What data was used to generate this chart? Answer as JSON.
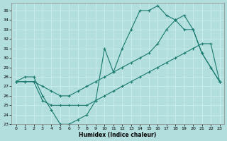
{
  "xlabel": "Humidex (Indice chaleur)",
  "xlim": [
    -0.5,
    23.5
  ],
  "ylim": [
    23,
    35.8
  ],
  "yticks": [
    23,
    24,
    25,
    26,
    27,
    28,
    29,
    30,
    31,
    32,
    33,
    34,
    35
  ],
  "xticks": [
    0,
    1,
    2,
    3,
    4,
    5,
    6,
    7,
    8,
    9,
    10,
    11,
    12,
    13,
    14,
    15,
    16,
    17,
    18,
    19,
    20,
    21,
    22,
    23
  ],
  "bg_color": "#b2dede",
  "grid_color": "#c8ecec",
  "line_color": "#1a7a6e",
  "line1_x": [
    0,
    1,
    2,
    3,
    4,
    5,
    6,
    7,
    8,
    9,
    10,
    11,
    12,
    13,
    14,
    15,
    16,
    17,
    18,
    19,
    20,
    21,
    22,
    23
  ],
  "line1_y": [
    27.5,
    28.0,
    28.0,
    26.0,
    24.5,
    23.0,
    23.0,
    23.5,
    24.0,
    25.5,
    31.0,
    28.5,
    31.0,
    33.0,
    35.0,
    35.0,
    35.5,
    34.5,
    34.0,
    33.0,
    33.0,
    30.5,
    29.0,
    27.5
  ],
  "line2_x": [
    0,
    1,
    2,
    3,
    4,
    5,
    6,
    7,
    8,
    9,
    10,
    11,
    12,
    13,
    14,
    15,
    16,
    17,
    18,
    19,
    20,
    21,
    22,
    23
  ],
  "line2_y": [
    27.5,
    27.5,
    27.5,
    27.0,
    26.5,
    26.0,
    26.0,
    26.5,
    27.0,
    27.5,
    28.0,
    28.5,
    29.0,
    29.5,
    30.0,
    30.5,
    31.5,
    33.0,
    34.0,
    34.5,
    33.0,
    30.5,
    29.0,
    27.5
  ],
  "line3_x": [
    0,
    1,
    2,
    3,
    4,
    5,
    6,
    7,
    8,
    9,
    10,
    11,
    12,
    13,
    14,
    15,
    16,
    17,
    18,
    19,
    20,
    21,
    22,
    23
  ],
  "line3_y": [
    27.5,
    27.5,
    27.5,
    25.5,
    25.0,
    25.0,
    25.0,
    25.0,
    25.0,
    25.5,
    26.0,
    26.5,
    27.0,
    27.5,
    28.0,
    28.5,
    29.0,
    29.5,
    30.0,
    30.5,
    31.0,
    31.5,
    31.5,
    27.5
  ]
}
